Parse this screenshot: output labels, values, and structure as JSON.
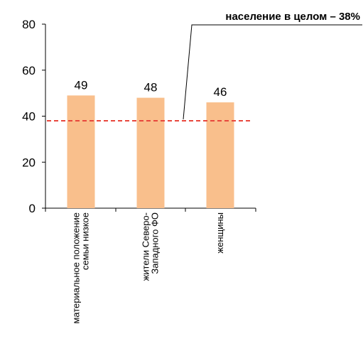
{
  "chart_data": {
    "type": "bar",
    "categories": [
      [
        "материальное положение",
        "семьи низкое"
      ],
      [
        "жители Северо-",
        "Западного ФО"
      ],
      [
        "женщины"
      ]
    ],
    "values": [
      49,
      48,
      46
    ],
    "value_labels": [
      "49",
      "48",
      "46"
    ],
    "ylim": [
      0,
      80
    ],
    "yticks": [
      0,
      20,
      40,
      60,
      80
    ],
    "title": "",
    "xlabel": "",
    "ylabel": "",
    "grid": false,
    "bar_color": "#f9bf8c",
    "reference_line": {
      "value": 38,
      "label": "население в целом – 38%",
      "color": "#e8473c"
    }
  }
}
